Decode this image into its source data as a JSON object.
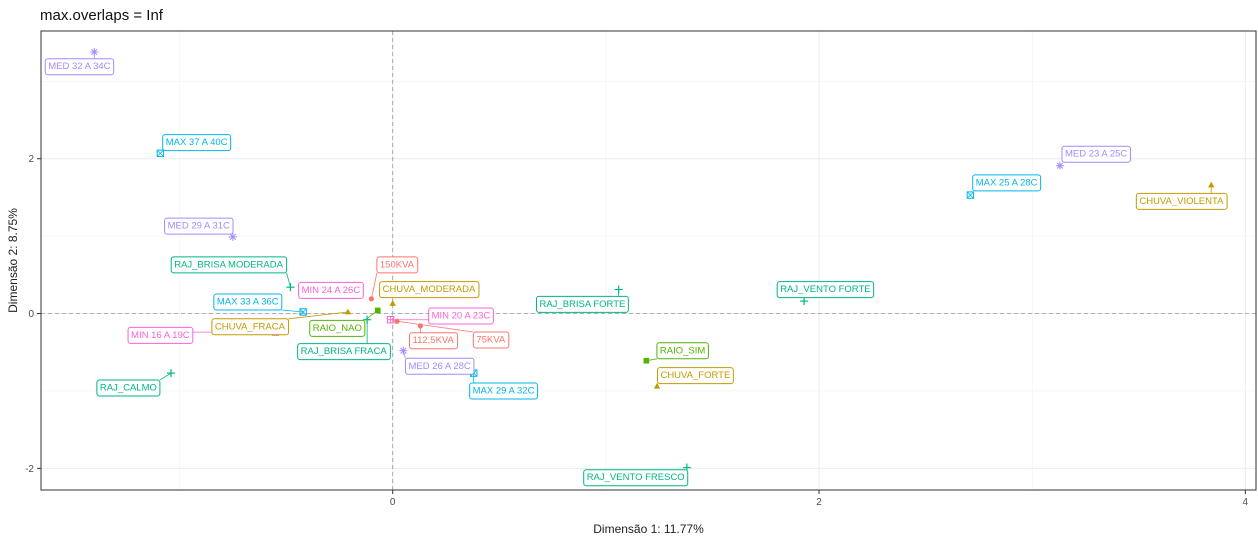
{
  "chart_data": {
    "type": "scatter",
    "title": "max.overlaps = Inf",
    "xlabel": "Dimensão 1: 11.77%",
    "ylabel": "Dimensão 2: 8.75%",
    "xlim": [
      -1.65,
      4.05
    ],
    "ylim": [
      -2.28,
      3.65
    ],
    "x_ticks": [
      0,
      2,
      4
    ],
    "y_ticks": [
      -2,
      0,
      2
    ],
    "grid": true,
    "reference_lines": {
      "x": 0,
      "y": 0
    },
    "groups": {
      "kva": {
        "color": "#F8766D",
        "shape": "circle"
      },
      "chuva": {
        "color": "#C49A00",
        "shape": "triangle"
      },
      "raio": {
        "color": "#53B400",
        "shape": "square"
      },
      "raj": {
        "color": "#00B686",
        "shape": "plus"
      },
      "max": {
        "color": "#00B7E8",
        "shape": "boxed-x"
      },
      "med": {
        "color": "#A58AFF",
        "shape": "star"
      },
      "min": {
        "color": "#FB61D7",
        "shape": "boxed-plus"
      }
    },
    "points": [
      {
        "label": "MED 32 A 34C",
        "group": "med",
        "x": -1.4,
        "y": 3.38,
        "lx": -1.47,
        "ly": 3.2
      },
      {
        "label": "MAX 37 A 40C",
        "group": "max",
        "x": -1.09,
        "y": 2.07,
        "lx": -0.92,
        "ly": 2.22
      },
      {
        "label": "MED 29 A 31C",
        "group": "med",
        "x": -0.75,
        "y": 0.99,
        "lx": -0.91,
        "ly": 1.14
      },
      {
        "label": "RAJ_BRISA MODERADA",
        "group": "raj",
        "x": -0.48,
        "y": 0.34,
        "lx": -0.77,
        "ly": 0.64
      },
      {
        "label": "MIN 24 A 26C",
        "group": "min",
        "x": -0.3,
        "y": 0.25,
        "lx": -0.29,
        "ly": 0.31
      },
      {
        "label": "150KVA",
        "group": "kva",
        "x": -0.1,
        "y": 0.19,
        "lx": 0.02,
        "ly": 0.64
      },
      {
        "label": "CHUVA_MODERADA",
        "group": "chuva",
        "x": 0.0,
        "y": 0.13,
        "lx": 0.17,
        "ly": 0.32
      },
      {
        "label": "MAX 33 A 36C",
        "group": "max",
        "x": -0.42,
        "y": 0.02,
        "lx": -0.68,
        "ly": 0.16
      },
      {
        "label": "CHUVA_FRACA",
        "group": "chuva",
        "x": -0.21,
        "y": 0.02,
        "lx": -0.67,
        "ly": -0.16
      },
      {
        "label": "RAIO_NAO",
        "group": "raio",
        "x": -0.07,
        "y": 0.04,
        "lx": -0.26,
        "ly": -0.18
      },
      {
        "label": "MIN 20 A 23C",
        "group": "min",
        "x": -0.01,
        "y": -0.08,
        "lx": 0.32,
        "ly": -0.02
      },
      {
        "label": "112,5KVA",
        "group": "kva",
        "x": 0.13,
        "y": -0.16,
        "lx": 0.19,
        "ly": -0.34
      },
      {
        "label": "75KVA",
        "group": "kva",
        "x": 0.02,
        "y": -0.1,
        "lx": 0.46,
        "ly": -0.33
      },
      {
        "label": "MIN 16 A 19C",
        "group": "min",
        "x": -0.55,
        "y": -0.24,
        "lx": -1.09,
        "ly": -0.27
      },
      {
        "label": "RAJ_BRISA FRACA",
        "group": "raj",
        "x": -0.12,
        "y": -0.08,
        "lx": -0.23,
        "ly": -0.48
      },
      {
        "label": "MED 26 A 28C",
        "group": "med",
        "x": 0.05,
        "y": -0.48,
        "lx": 0.22,
        "ly": -0.67
      },
      {
        "label": "MAX 29 A 32C",
        "group": "max",
        "x": 0.38,
        "y": -0.77,
        "lx": 0.52,
        "ly": -0.99
      },
      {
        "label": "RAJ_CALMO",
        "group": "raj",
        "x": -1.04,
        "y": -0.77,
        "lx": -1.24,
        "ly": -0.95
      },
      {
        "label": "RAJ_BRISA FORTE",
        "group": "raj",
        "x": 1.06,
        "y": 0.31,
        "lx": 0.89,
        "ly": 0.13
      },
      {
        "label": "RAIO_SIM",
        "group": "raio",
        "x": 1.19,
        "y": -0.61,
        "lx": 1.36,
        "ly": -0.47
      },
      {
        "label": "CHUVA_FORTE",
        "group": "chuva",
        "x": 1.24,
        "y": -0.94,
        "lx": 1.42,
        "ly": -0.79
      },
      {
        "label": "RAJ_VENTO FORTE",
        "group": "raj",
        "x": 1.93,
        "y": 0.16,
        "lx": 2.03,
        "ly": 0.32
      },
      {
        "label": "RAJ_VENTO FRESCO",
        "group": "raj",
        "x": 1.38,
        "y": -1.99,
        "lx": 1.14,
        "ly": -2.11
      },
      {
        "label": "MAX 25 A 28C",
        "group": "max",
        "x": 2.71,
        "y": 1.53,
        "lx": 2.88,
        "ly": 1.7
      },
      {
        "label": "MED 23 A 25C",
        "group": "med",
        "x": 3.13,
        "y": 1.91,
        "lx": 3.3,
        "ly": 2.07
      },
      {
        "label": "CHUVA_VIOLENTA",
        "group": "chuva",
        "x": 3.84,
        "y": 1.66,
        "lx": 3.7,
        "ly": 1.46
      }
    ]
  }
}
